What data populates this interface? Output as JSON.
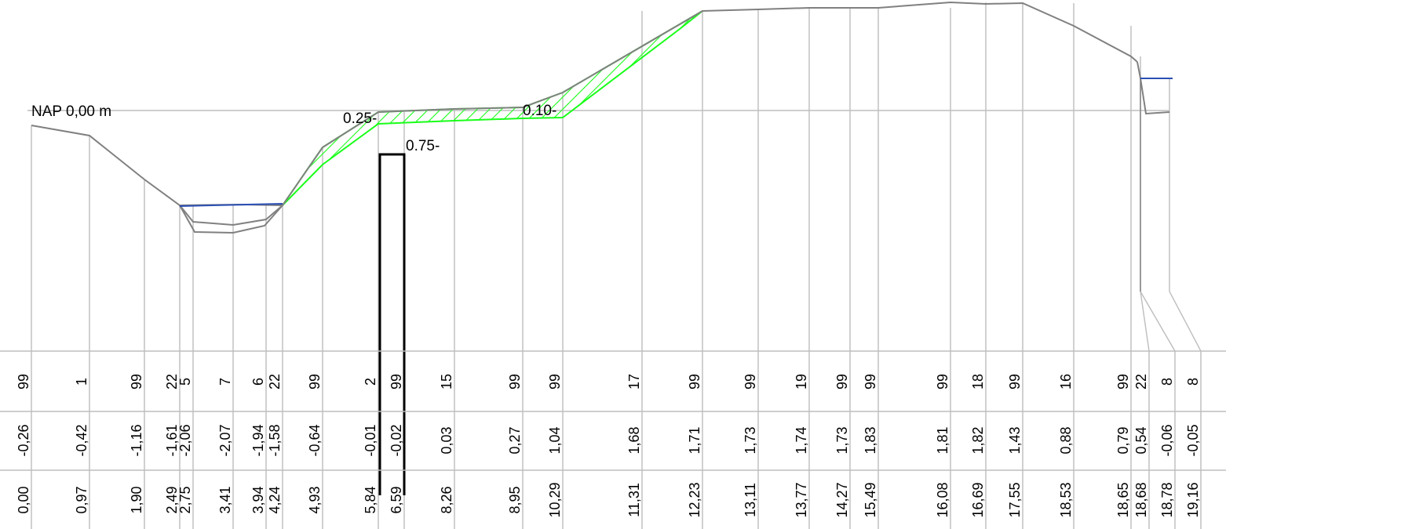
{
  "reference_label": "NAP 0,00 m",
  "dimension_labels": {
    "left_layer_thickness": "0.25-",
    "right_layer_thickness": "0.10-",
    "sheet_depth": "0.75-"
  },
  "rows": {
    "codes": [
      "99",
      "1",
      "99",
      "22",
      "5",
      "7",
      "6",
      "22",
      "99",
      "2",
      "99",
      "15",
      "99",
      "99",
      "17",
      "99",
      "99",
      "19",
      "99",
      "99",
      "99",
      "18",
      "99",
      "16",
      "99",
      "22",
      "8",
      "8"
    ],
    "heights": [
      "-0,26",
      "-0,42",
      "-1,16",
      "-1,61",
      "-2,06",
      "-2,07",
      "-1,94",
      "-1,58",
      "-0,64",
      "-0,01",
      "-0,02",
      "0,03",
      "0,27",
      "1,04",
      "1,68",
      "1,71",
      "1,73",
      "1,74",
      "1,73",
      "1,83",
      "1,81",
      "1,82",
      "1,43",
      "0,88",
      "0,79",
      "0,54",
      "-0,06",
      "-0,05"
    ],
    "distances": [
      "0,00",
      "0,97",
      "1,90",
      "2,49",
      "2,75",
      "3,41",
      "3,94",
      "4,24",
      "4,93",
      "5,84",
      "6,59",
      "8,26",
      "8,95",
      "10,29",
      "11,31",
      "12,23",
      "13,11",
      "13,77",
      "14,27",
      "15,49",
      "16,08",
      "16,69",
      "17,55",
      "18,53",
      "18,65",
      "18,68",
      "18,78",
      "19,16"
    ]
  },
  "colors": {
    "profile": "#808080",
    "grid": "#bdbdbd",
    "water": "#2a4fb5",
    "fill_hatch": "#19ff19",
    "sheet_pile": "#000000"
  }
}
